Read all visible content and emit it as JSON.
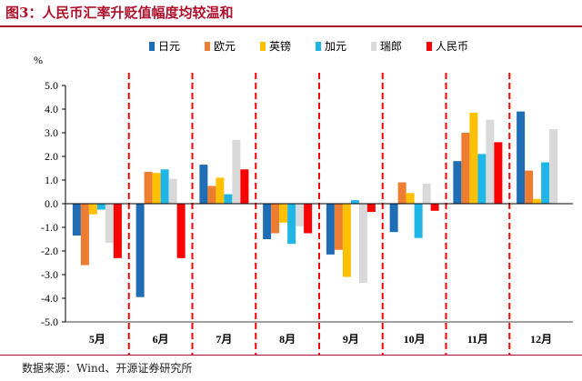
{
  "figure": {
    "title": "图3：人民币汇率升贬值幅度均较温和",
    "source": "数据来源：Wind、开源证券研究所"
  },
  "colors": {
    "日元": "#1f6eb5",
    "欧元": "#ed7d31",
    "英镑": "#ffc000",
    "加元": "#1fb5e6",
    "瑞郎": "#d9d9d9",
    "人民币": "#ff0000",
    "divider": "#ff0000",
    "title": "#b0102a"
  },
  "chart_data": {
    "type": "bar",
    "ylabel": "%",
    "ylim": [
      -5.0,
      5.0
    ],
    "yticks": [
      "5.0",
      "4.0",
      "3.0",
      "2.0",
      "1.0",
      "0.0",
      "-1.0",
      "-2.0",
      "-3.0",
      "-4.0",
      "-5.0"
    ],
    "legend_position": "top",
    "categories": [
      "5月",
      "6月",
      "7月",
      "8月",
      "9月",
      "10月",
      "11月",
      "12月"
    ],
    "series": [
      {
        "name": "日元",
        "values": [
          -1.35,
          -3.95,
          1.65,
          -1.5,
          -2.15,
          -1.2,
          1.8,
          3.9
        ]
      },
      {
        "name": "欧元",
        "values": [
          -2.6,
          1.35,
          0.75,
          -1.25,
          -1.95,
          0.9,
          3.0,
          1.4
        ]
      },
      {
        "name": "英镑",
        "values": [
          -0.45,
          1.3,
          1.1,
          -0.8,
          -3.1,
          0.45,
          3.85,
          0.2
        ]
      },
      {
        "name": "加元",
        "values": [
          -0.25,
          1.45,
          0.4,
          -1.7,
          0.15,
          -1.45,
          2.1,
          1.75
        ]
      },
      {
        "name": "瑞郎",
        "values": [
          -1.65,
          1.05,
          2.7,
          -0.95,
          -3.35,
          0.85,
          3.55,
          3.15
        ]
      },
      {
        "name": "人民币",
        "values": [
          -2.3,
          -2.3,
          1.45,
          -1.25,
          -0.35,
          -0.3,
          2.6,
          null
        ]
      }
    ]
  }
}
